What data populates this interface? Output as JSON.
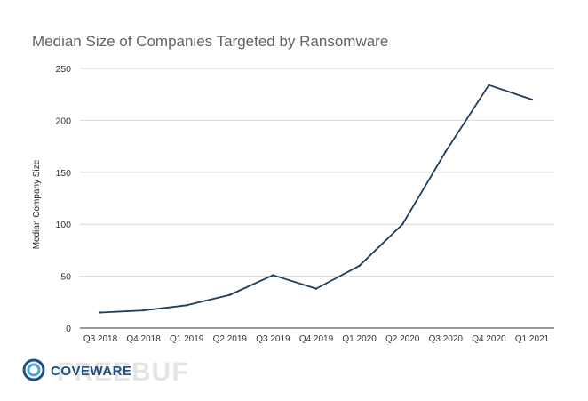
{
  "chart_data": {
    "type": "line",
    "title": "Median Size of Companies Targeted by Ransomware",
    "xlabel": "",
    "ylabel": "Median Company Size",
    "categories": [
      "Q3 2018",
      "Q4 2018",
      "Q1 2019",
      "Q2 2019",
      "Q3 2019",
      "Q4 2019",
      "Q1 2020",
      "Q2 2020",
      "Q3 2020",
      "Q4 2020",
      "Q1 2021"
    ],
    "series": [
      {
        "values": [
          15,
          17,
          22,
          32,
          51,
          38,
          60,
          100,
          170,
          234,
          220
        ],
        "color": "#1f3c5c"
      }
    ],
    "ylim": [
      0,
      250
    ],
    "yticks": [
      0,
      50,
      100,
      150,
      200,
      250
    ],
    "grid": true,
    "legend": "none"
  },
  "brand": {
    "logo_text": "COVEWARE",
    "logo_color": "#1f4f7c",
    "logo_accent": "#4aa3df",
    "watermark_text": "FREEBUF"
  }
}
